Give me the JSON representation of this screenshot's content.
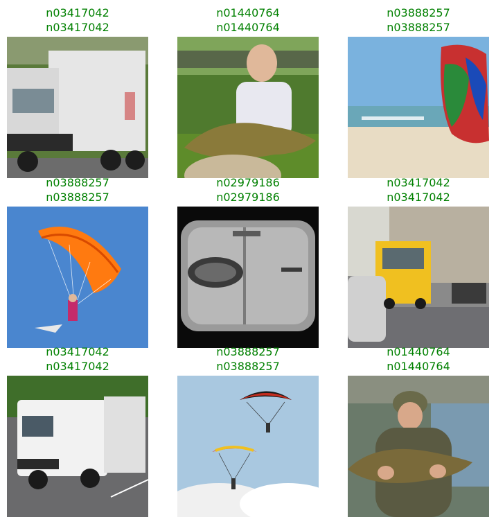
{
  "figure": {
    "caption_color": "#008000",
    "tiles": [
      {
        "line1": "n03417042",
        "line2": "n03417042",
        "scene": "garbage-truck-icon"
      },
      {
        "line1": "n01440764",
        "line2": "n01440764",
        "scene": "fish-icon"
      },
      {
        "line1": "n03888257",
        "line2": "n03888257",
        "scene": "parachute-icon"
      },
      {
        "line1": "n03888257",
        "line2": "n03888257",
        "scene": "parachute-icon"
      },
      {
        "line1": "n02979186",
        "line2": "n02979186",
        "scene": "cassette-player-icon"
      },
      {
        "line1": "n03417042",
        "line2": "n03417042",
        "scene": "garbage-truck-icon"
      },
      {
        "line1": "n03417042",
        "line2": "n03417042",
        "scene": "garbage-truck-icon"
      },
      {
        "line1": "n03888257",
        "line2": "n03888257",
        "scene": "parachute-icon"
      },
      {
        "line1": "n01440764",
        "line2": "n01440764",
        "scene": "fish-icon"
      }
    ]
  }
}
